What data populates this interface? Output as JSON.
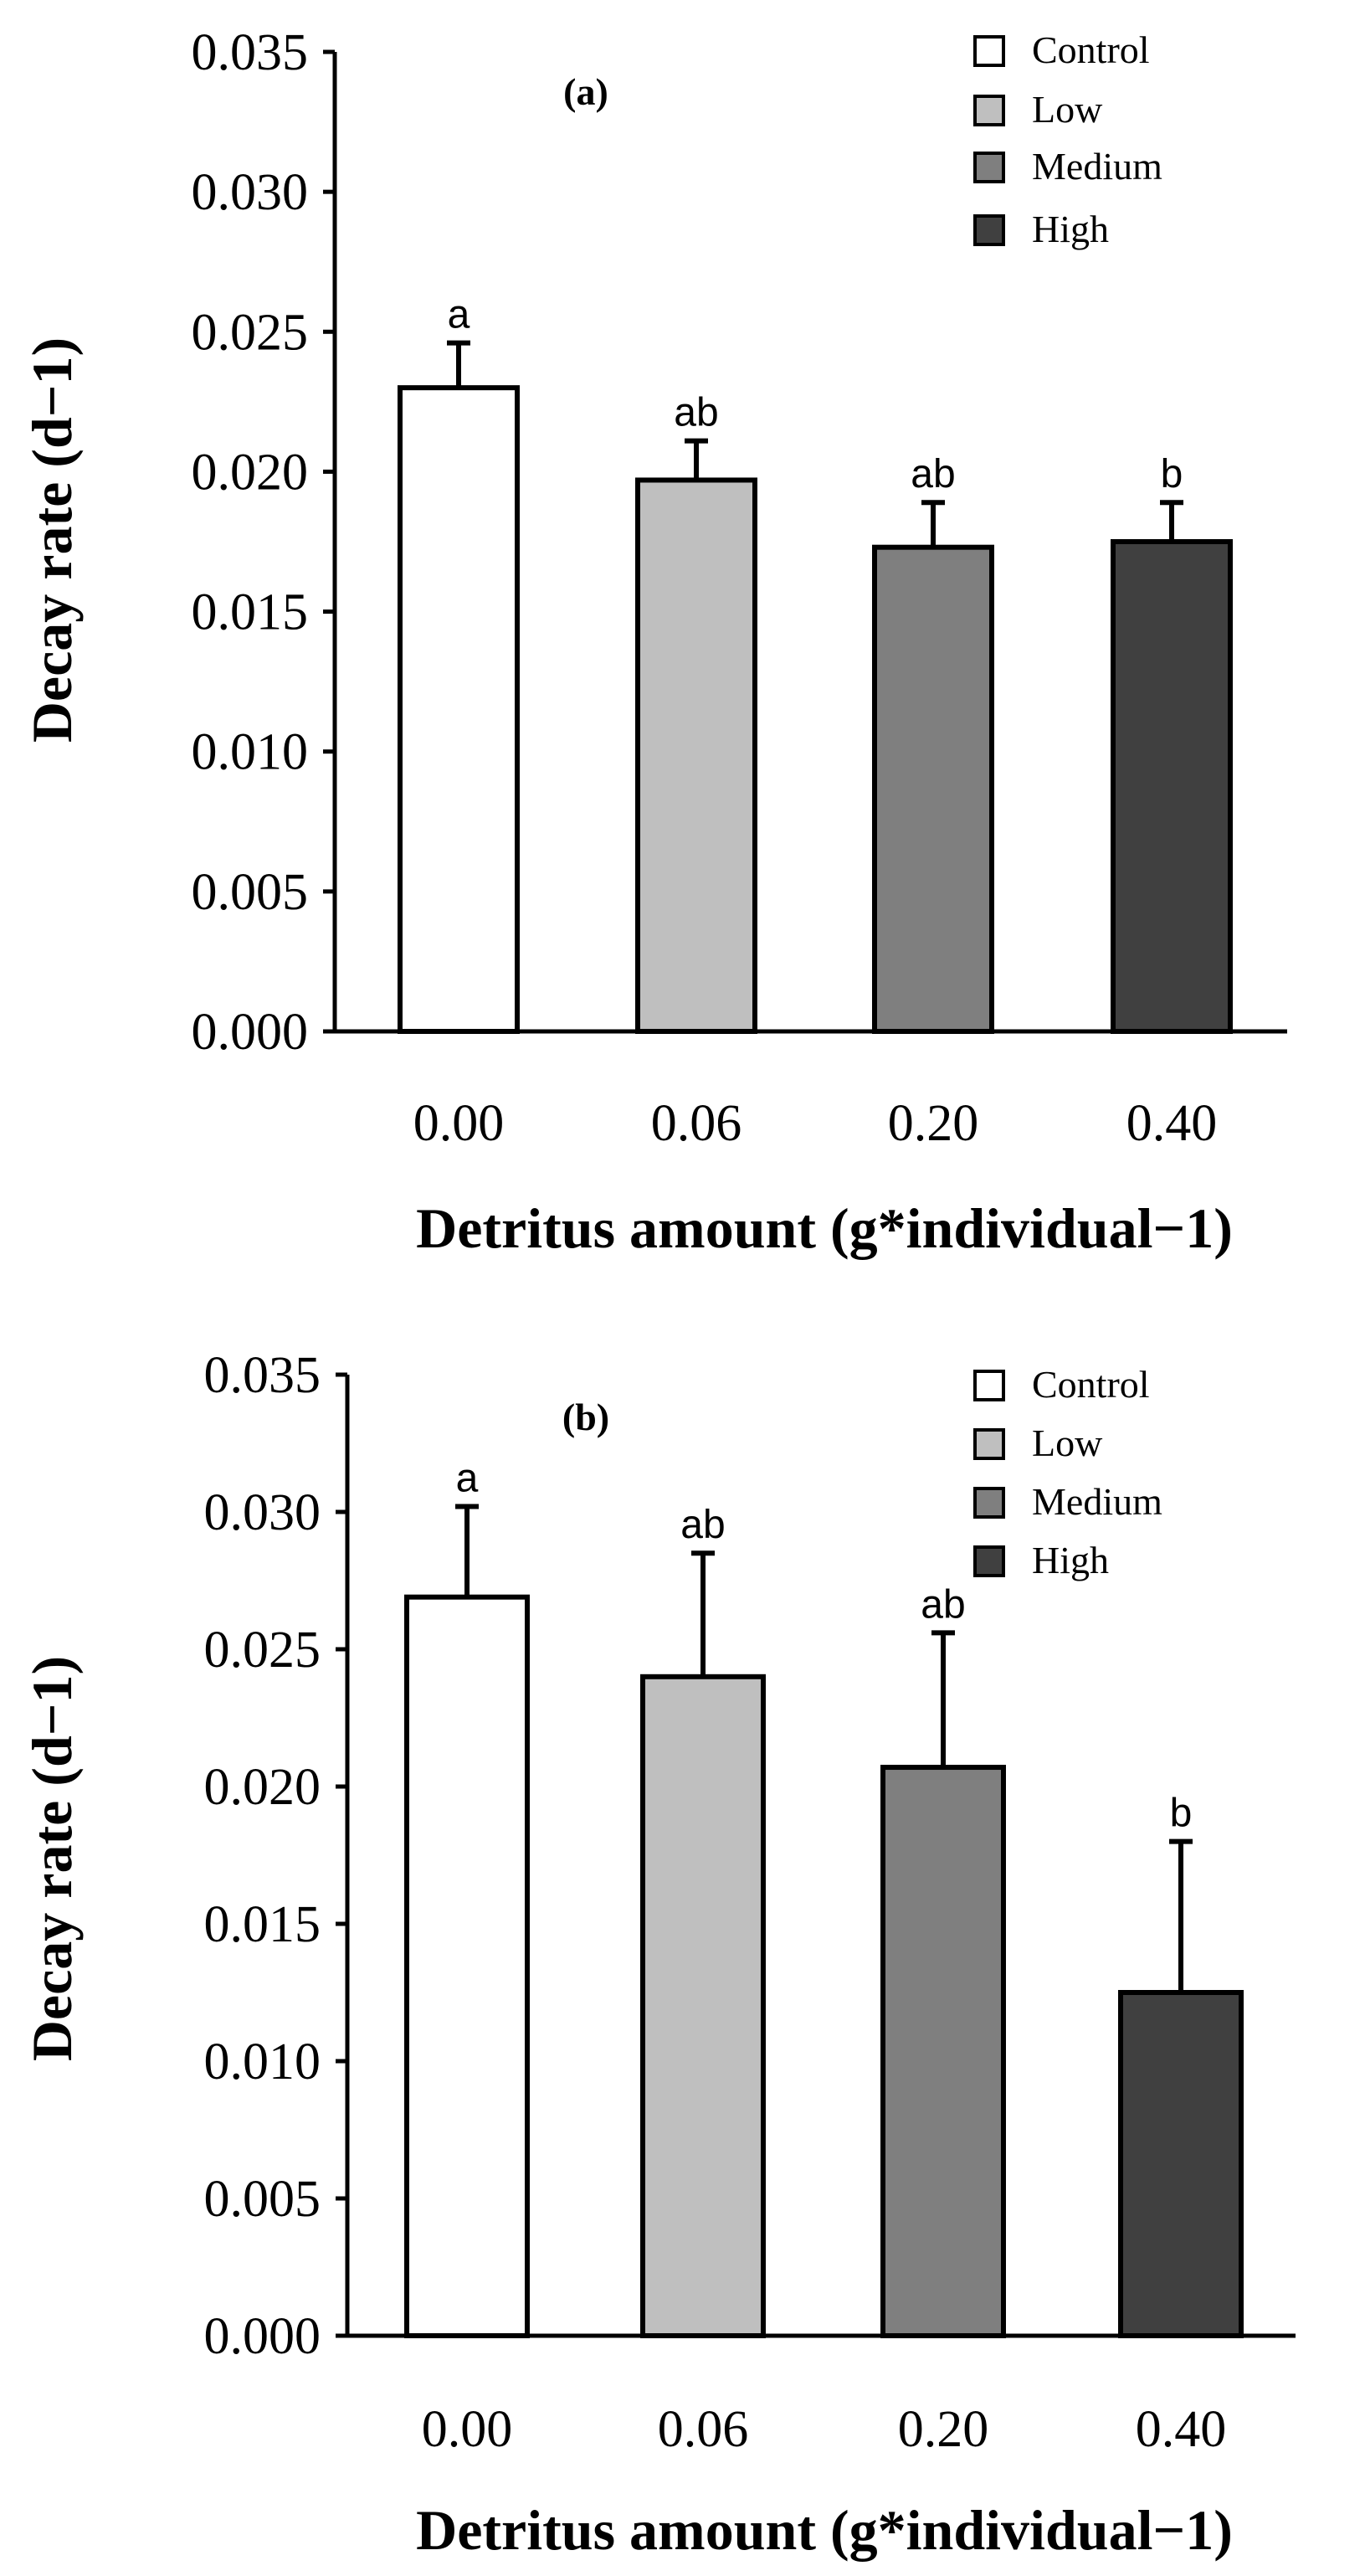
{
  "chart_data": [
    {
      "type": "bar",
      "panel_label": "(a)",
      "categories": [
        "0.00",
        "0.06",
        "0.20",
        "0.40"
      ],
      "values": [
        0.023,
        0.0197,
        0.0173,
        0.0175
      ],
      "errors": [
        0.0016,
        0.0014,
        0.0016,
        0.0014
      ],
      "significance": [
        "a",
        "ab",
        "ab",
        "b"
      ],
      "fills": [
        "#ffffff",
        "#bfbfbf",
        "#7f7f7f",
        "#404040"
      ],
      "ylim": [
        0,
        0.035
      ],
      "yticks": [
        "0.000",
        "0.005",
        "0.010",
        "0.015",
        "0.020",
        "0.025",
        "0.030",
        "0.035"
      ],
      "xlabel": "Detritus amount (g*individual−1)",
      "ylabel": "Decay rate (d−1)",
      "legend": [
        {
          "label": "Control",
          "color": "#ffffff"
        },
        {
          "label": "Low",
          "color": "#bfbfbf"
        },
        {
          "label": "Medium",
          "color": "#7f7f7f"
        },
        {
          "label": "High",
          "color": "#404040"
        }
      ],
      "legend_position": "top-right"
    },
    {
      "type": "bar",
      "panel_label": "(b)",
      "categories": [
        "0.00",
        "0.06",
        "0.20",
        "0.40"
      ],
      "values": [
        0.0269,
        0.024,
        0.0207,
        0.0125
      ],
      "errors": [
        0.0033,
        0.0045,
        0.0049,
        0.0055
      ],
      "significance": [
        "a",
        "ab",
        "ab",
        "b"
      ],
      "fills": [
        "#ffffff",
        "#bfbfbf",
        "#7f7f7f",
        "#404040"
      ],
      "ylim": [
        0,
        0.035
      ],
      "yticks": [
        "0.000",
        "0.005",
        "0.010",
        "0.015",
        "0.020",
        "0.025",
        "0.030",
        "0.035"
      ],
      "xlabel": "Detritus amount (g*individual−1)",
      "ylabel": "Decay rate (d−1)",
      "legend": [
        {
          "label": "Control",
          "color": "#ffffff"
        },
        {
          "label": "Low",
          "color": "#bfbfbf"
        },
        {
          "label": "Medium",
          "color": "#7f7f7f"
        },
        {
          "label": "High",
          "color": "#404040"
        }
      ],
      "legend_position": "top-right"
    }
  ]
}
